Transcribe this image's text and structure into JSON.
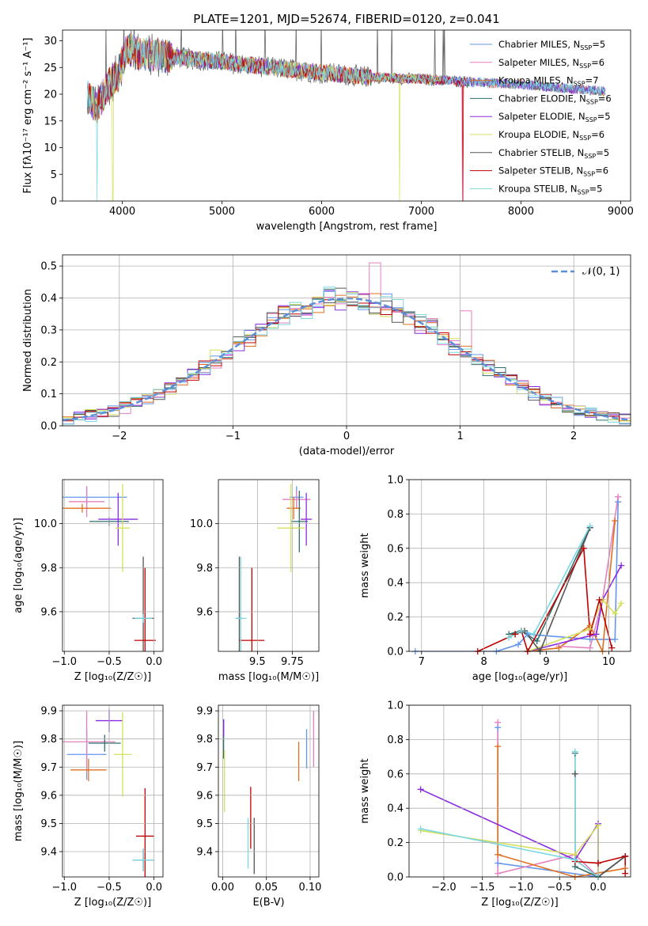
{
  "figure": {
    "title": "PLATE=1201, MJD=52674, FIBERID=0120, z=0.041"
  },
  "colors": [
    "#6495ed",
    "#e67fc0",
    "#e07020",
    "#2f6f6f",
    "#8a2be2",
    "#d4e05a",
    "#555555",
    "#c00000",
    "#7ad8e0"
  ],
  "models": [
    {
      "model": "Chabrier MILES",
      "n": "5",
      "color": "#6495ed"
    },
    {
      "model": "Salpeter MILES",
      "n": "6",
      "color": "#e67fc0"
    },
    {
      "model": "Kroupa MILES",
      "n": "7",
      "color": "#e07020"
    },
    {
      "model": "Chabrier ELODIE",
      "n": "6",
      "color": "#2f6f6f"
    },
    {
      "model": "Salpeter ELODIE",
      "n": "5",
      "color": "#8a2be2"
    },
    {
      "model": "Kroupa ELODIE",
      "n": "6",
      "color": "#d4e05a"
    },
    {
      "model": "Chabrier STELIB",
      "n": "5",
      "color": "#555555"
    },
    {
      "model": "Salpeter STELIB",
      "n": "6",
      "color": "#c00000"
    },
    {
      "model": "Kroupa STELIB",
      "n": "5",
      "color": "#7ad8e0"
    }
  ],
  "chart_data": [
    {
      "id": "spectrum",
      "type": "line",
      "xlabel": "wavelength [Angstrom, rest frame]",
      "ylabel": "Flux [fλ10⁻¹⁷ erg cm⁻² s⁻¹ A⁻¹]",
      "xlim": [
        3400,
        9100
      ],
      "ylim": [
        0,
        32
      ],
      "xticks": [
        4000,
        5000,
        6000,
        7000,
        8000,
        9000
      ],
      "yticks": [
        0,
        5,
        10,
        15,
        20,
        25,
        30
      ],
      "legend_position": "top-right",
      "continuum": [
        [
          3650,
          19.5
        ],
        [
          3750,
          17.5
        ],
        [
          3850,
          21.5
        ],
        [
          3950,
          23.5
        ],
        [
          4050,
          28.5
        ],
        [
          4200,
          27.5
        ],
        [
          4500,
          27
        ],
        [
          5000,
          26
        ],
        [
          5500,
          25
        ],
        [
          6000,
          24
        ],
        [
          6500,
          23.2
        ],
        [
          7000,
          22.8
        ],
        [
          7500,
          22.3
        ],
        [
          8000,
          21.8
        ],
        [
          8500,
          21
        ],
        [
          8850,
          20.5
        ]
      ],
      "line_end": [
        8850,
        8850,
        8850,
        8850,
        8850,
        7200,
        7500,
        7450,
        8850
      ],
      "dips": [
        [
          3745,
          0,
          8
        ],
        [
          3905,
          0,
          5
        ],
        [
          6780,
          0,
          5
        ],
        [
          7410,
          0,
          1
        ],
        [
          7420,
          0,
          7
        ]
      ]
    },
    {
      "id": "residuals",
      "type": "histogram",
      "xlabel": "(data-model)/error",
      "ylabel": "Normed distribution",
      "xlim": [
        -2.5,
        2.5
      ],
      "ylim": [
        0,
        0.535
      ],
      "xticks": [
        -2,
        -1,
        0,
        1,
        2
      ],
      "yticks": [
        0.0,
        0.1,
        0.2,
        0.3,
        0.4,
        0.5
      ],
      "bin_width": 0.1,
      "reference": {
        "label": "𝒩(0, 1)",
        "color": "#5b8fd9"
      },
      "legend_position": "top-right",
      "spike": {
        "series": 1,
        "x": 0.25,
        "value": 0.51
      }
    },
    {
      "id": "z-age",
      "type": "errorbar",
      "xlabel": "Z [log₁₀(Z/Z☉)]",
      "ylabel": "age  [log₁₀(age/yr)]",
      "xlim": [
        -1.02,
        0.1
      ],
      "ylim": [
        9.42,
        10.2
      ],
      "xticks": [
        -1.0,
        -0.5,
        0.0
      ],
      "yticks": [
        9.6,
        9.8,
        10.0
      ],
      "points": [
        {
          "x": -0.75,
          "y": 10.12,
          "xerr": 0.45,
          "yerr": 0.05
        },
        {
          "x": -0.75,
          "y": 10.1,
          "xerr": 0.2,
          "yerr": 0.07
        },
        {
          "x": -0.8,
          "y": 10.07,
          "xerr": 0.32,
          "yerr": 0.02
        },
        {
          "x": -0.5,
          "y": 10.01,
          "xerr": 0.22,
          "yerr": 0.02
        },
        {
          "x": -0.4,
          "y": 10.02,
          "xerr": 0.22,
          "yerr": 0.12
        },
        {
          "x": -0.35,
          "y": 9.98,
          "xerr": 0.08,
          "yerr": 0.2
        },
        {
          "x": -0.12,
          "y": 9.57,
          "xerr": 0.12,
          "yerr": 0.28
        },
        {
          "x": -0.1,
          "y": 9.47,
          "xerr": 0.12,
          "yerr": 0.33
        },
        {
          "x": -0.12,
          "y": 9.57,
          "xerr": 0.1,
          "yerr": 0.02
        }
      ]
    },
    {
      "id": "mass-age",
      "type": "errorbar",
      "xlabel": "mass [log₁₀(M/M☉)]",
      "ylabel": "",
      "xlim": [
        9.22,
        9.94
      ],
      "ylim": [
        9.42,
        10.2
      ],
      "xticks": [
        9.5,
        9.75
      ],
      "yticks": [
        9.6,
        9.8,
        10.0
      ],
      "points": [
        {
          "x": 9.78,
          "y": 10.12,
          "xerr": 0.05,
          "yerr": 0.05
        },
        {
          "x": 9.78,
          "y": 10.11,
          "xerr": 0.1,
          "yerr": 0.04
        },
        {
          "x": 9.76,
          "y": 10.07,
          "xerr": 0.05,
          "yerr": 0.05
        },
        {
          "x": 9.8,
          "y": 10.01,
          "xerr": 0.06,
          "yerr": 0.14
        },
        {
          "x": 9.85,
          "y": 10.02,
          "xerr": 0.04,
          "yerr": 0.12
        },
        {
          "x": 9.74,
          "y": 9.98,
          "xerr": 0.1,
          "yerr": 0.2
        },
        {
          "x": 9.37,
          "y": 9.57,
          "xerr": 0.02,
          "yerr": 0.28
        },
        {
          "x": 9.46,
          "y": 9.47,
          "xerr": 0.09,
          "yerr": 0.33
        },
        {
          "x": 9.38,
          "y": 9.57,
          "xerr": 0.04,
          "yerr": 0.28
        }
      ]
    },
    {
      "id": "age-weight",
      "type": "line",
      "xlabel": "age  [log₁₀(age/yr)]",
      "ylabel": "mass weight",
      "xlim": [
        6.8,
        10.35
      ],
      "ylim": [
        0,
        1.0
      ],
      "xticks": [
        7,
        8,
        9,
        10
      ],
      "yticks": [
        0.0,
        0.2,
        0.4,
        0.6,
        0.8,
        1.0
      ],
      "series": [
        [
          [
            6.9,
            0.0
          ],
          [
            8.2,
            0.0
          ],
          [
            8.55,
            0.04
          ],
          [
            8.7,
            0.1
          ],
          [
            9.7,
            0.07
          ],
          [
            10.1,
            0.07
          ],
          [
            10.15,
            0.87
          ]
        ],
        [
          [
            9.2,
            0.03
          ],
          [
            9.7,
            0.02
          ],
          [
            9.9,
            0.3
          ],
          [
            10.15,
            0.9
          ]
        ],
        [
          [
            8.7,
            0.0
          ],
          [
            9.2,
            0.02
          ],
          [
            9.7,
            0.15
          ],
          [
            9.9,
            0.0
          ],
          [
            10.1,
            0.76
          ]
        ],
        [
          [
            8.4,
            0.1
          ],
          [
            8.6,
            0.12
          ],
          [
            8.85,
            0.06
          ],
          [
            9.7,
            0.72
          ]
        ],
        [
          [
            8.7,
            0.0
          ],
          [
            9.8,
            0.1
          ],
          [
            9.9,
            0.3
          ],
          [
            10.2,
            0.5
          ]
        ],
        [
          [
            8.7,
            0.0
          ],
          [
            9.7,
            0.13
          ],
          [
            9.9,
            0.3
          ],
          [
            10.1,
            0.22
          ],
          [
            10.2,
            0.28
          ]
        ],
        [
          [
            8.5,
            0.1
          ],
          [
            8.65,
            0.12
          ],
          [
            8.9,
            0.0
          ],
          [
            9.7,
            0.72
          ]
        ],
        [
          [
            7.9,
            0.0
          ],
          [
            8.5,
            0.1
          ],
          [
            8.6,
            0.12
          ],
          [
            8.7,
            0.0
          ],
          [
            9.6,
            0.6
          ],
          [
            9.7,
            0.1
          ],
          [
            9.85,
            0.3
          ],
          [
            10.05,
            0.02
          ]
        ],
        [
          [
            8.4,
            0.08
          ],
          [
            8.6,
            0.12
          ],
          [
            8.8,
            0.1
          ],
          [
            9.7,
            0.73
          ]
        ]
      ]
    },
    {
      "id": "z-mass",
      "type": "errorbar",
      "xlabel": "Z [log₁₀(Z/Z☉)]",
      "ylabel": "mass [log₁₀(M/M☉)]",
      "xlim": [
        -1.02,
        0.1
      ],
      "ylim": [
        9.31,
        9.92
      ],
      "xticks": [
        -1.0,
        -0.5,
        0.0
      ],
      "yticks": [
        9.4,
        9.5,
        9.6,
        9.7,
        9.8,
        9.9
      ],
      "points": [
        {
          "x": -0.75,
          "y": 9.745,
          "xerr": 0.22,
          "yerr": 0.09
        },
        {
          "x": -0.75,
          "y": 9.79,
          "xerr": 0.32,
          "yerr": 0.11
        },
        {
          "x": -0.73,
          "y": 9.69,
          "xerr": 0.2,
          "yerr": 0.04
        },
        {
          "x": -0.55,
          "y": 9.785,
          "xerr": 0.18,
          "yerr": 0.03
        },
        {
          "x": -0.5,
          "y": 9.865,
          "xerr": 0.15,
          "yerr": 0.04
        },
        {
          "x": -0.35,
          "y": 9.745,
          "xerr": 0.1,
          "yerr": 0.15
        },
        {
          "x": -0.12,
          "y": 9.37,
          "xerr": 0.12,
          "yerr": 0.04
        },
        {
          "x": -0.1,
          "y": 9.455,
          "xerr": 0.1,
          "yerr": 0.17
        },
        {
          "x": -0.12,
          "y": 9.37,
          "xerr": 0.12,
          "yerr": 0.04
        }
      ]
    },
    {
      "id": "ebv-mass",
      "type": "errorbar",
      "xlabel": "E(B-V)",
      "ylabel": "",
      "xlim": [
        -0.005,
        0.11
      ],
      "ylim": [
        9.31,
        9.92
      ],
      "xticks": [
        0.0,
        0.05,
        0.1
      ],
      "yticks": [
        9.4,
        9.5,
        9.6,
        9.7,
        9.8,
        9.9
      ],
      "points": [
        {
          "x": 0.096,
          "y": 9.765,
          "xerr": 0.0,
          "yerr": 0.07
        },
        {
          "x": 0.104,
          "y": 9.8,
          "xerr": 0.0,
          "yerr": 0.1
        },
        {
          "x": 0.087,
          "y": 9.72,
          "xerr": 0.0,
          "yerr": 0.07
        },
        {
          "x": 0.001,
          "y": 9.8,
          "xerr": 0.0,
          "yerr": 0.07
        },
        {
          "x": 0.001,
          "y": 9.84,
          "xerr": 0.0,
          "yerr": 0.03
        },
        {
          "x": 0.002,
          "y": 9.65,
          "xerr": 0.0,
          "yerr": 0.11
        },
        {
          "x": 0.036,
          "y": 9.42,
          "xerr": 0.0,
          "yerr": 0.1
        },
        {
          "x": 0.032,
          "y": 9.52,
          "xerr": 0.0,
          "yerr": 0.11
        },
        {
          "x": 0.029,
          "y": 9.43,
          "xerr": 0.0,
          "yerr": 0.09
        }
      ]
    },
    {
      "id": "z-weight",
      "type": "line",
      "xlabel": "Z [log₁₀(Z/Z☉)]",
      "ylabel": "mass weight",
      "xlim": [
        -2.45,
        0.42
      ],
      "ylim": [
        0,
        1.0
      ],
      "xticks": [
        -2.0,
        -1.5,
        -1.0,
        -0.5,
        0.0
      ],
      "yticks": [
        0.0,
        0.2,
        0.4,
        0.6,
        0.8,
        1.0
      ],
      "series": [
        [
          [
            -1.3,
            0.87
          ],
          [
            -1.3,
            0.08
          ],
          [
            0.0,
            0.0
          ],
          [
            0.35,
            0.12
          ]
        ],
        [
          [
            -1.3,
            0.9
          ],
          [
            -1.3,
            0.02
          ],
          [
            -0.3,
            0.13
          ],
          [
            0.0,
            0.0
          ]
        ],
        [
          [
            -1.3,
            0.76
          ],
          [
            -1.3,
            0.13
          ],
          [
            -0.3,
            0.0
          ],
          [
            0.35,
            0.05
          ]
        ],
        [
          [
            -0.3,
            0.72
          ],
          [
            -0.3,
            0.06
          ],
          [
            0.0,
            0.0
          ],
          [
            0.35,
            0.12
          ]
        ],
        [
          [
            -2.3,
            0.51
          ],
          [
            -0.3,
            0.1
          ],
          [
            0.0,
            0.31
          ],
          [
            0.0,
            0.0
          ]
        ],
        [
          [
            -2.3,
            0.27
          ],
          [
            -0.3,
            0.13
          ],
          [
            0.0,
            0.3
          ],
          [
            0.0,
            0.0
          ]
        ],
        [
          [
            -0.3,
            0.6
          ],
          [
            -0.3,
            0.1
          ],
          [
            0.0,
            0.0
          ],
          [
            0.35,
            0.12
          ]
        ],
        [
          [
            -0.3,
            0.09
          ],
          [
            0.0,
            0.08
          ],
          [
            0.35,
            0.12
          ],
          [
            0.35,
            0.02
          ]
        ],
        [
          [
            -2.3,
            0.28
          ],
          [
            -0.3,
            0.1
          ],
          [
            -0.3,
            0.73
          ],
          [
            -0.3,
            0.1
          ],
          [
            0.0,
            0.0
          ]
        ]
      ]
    }
  ]
}
